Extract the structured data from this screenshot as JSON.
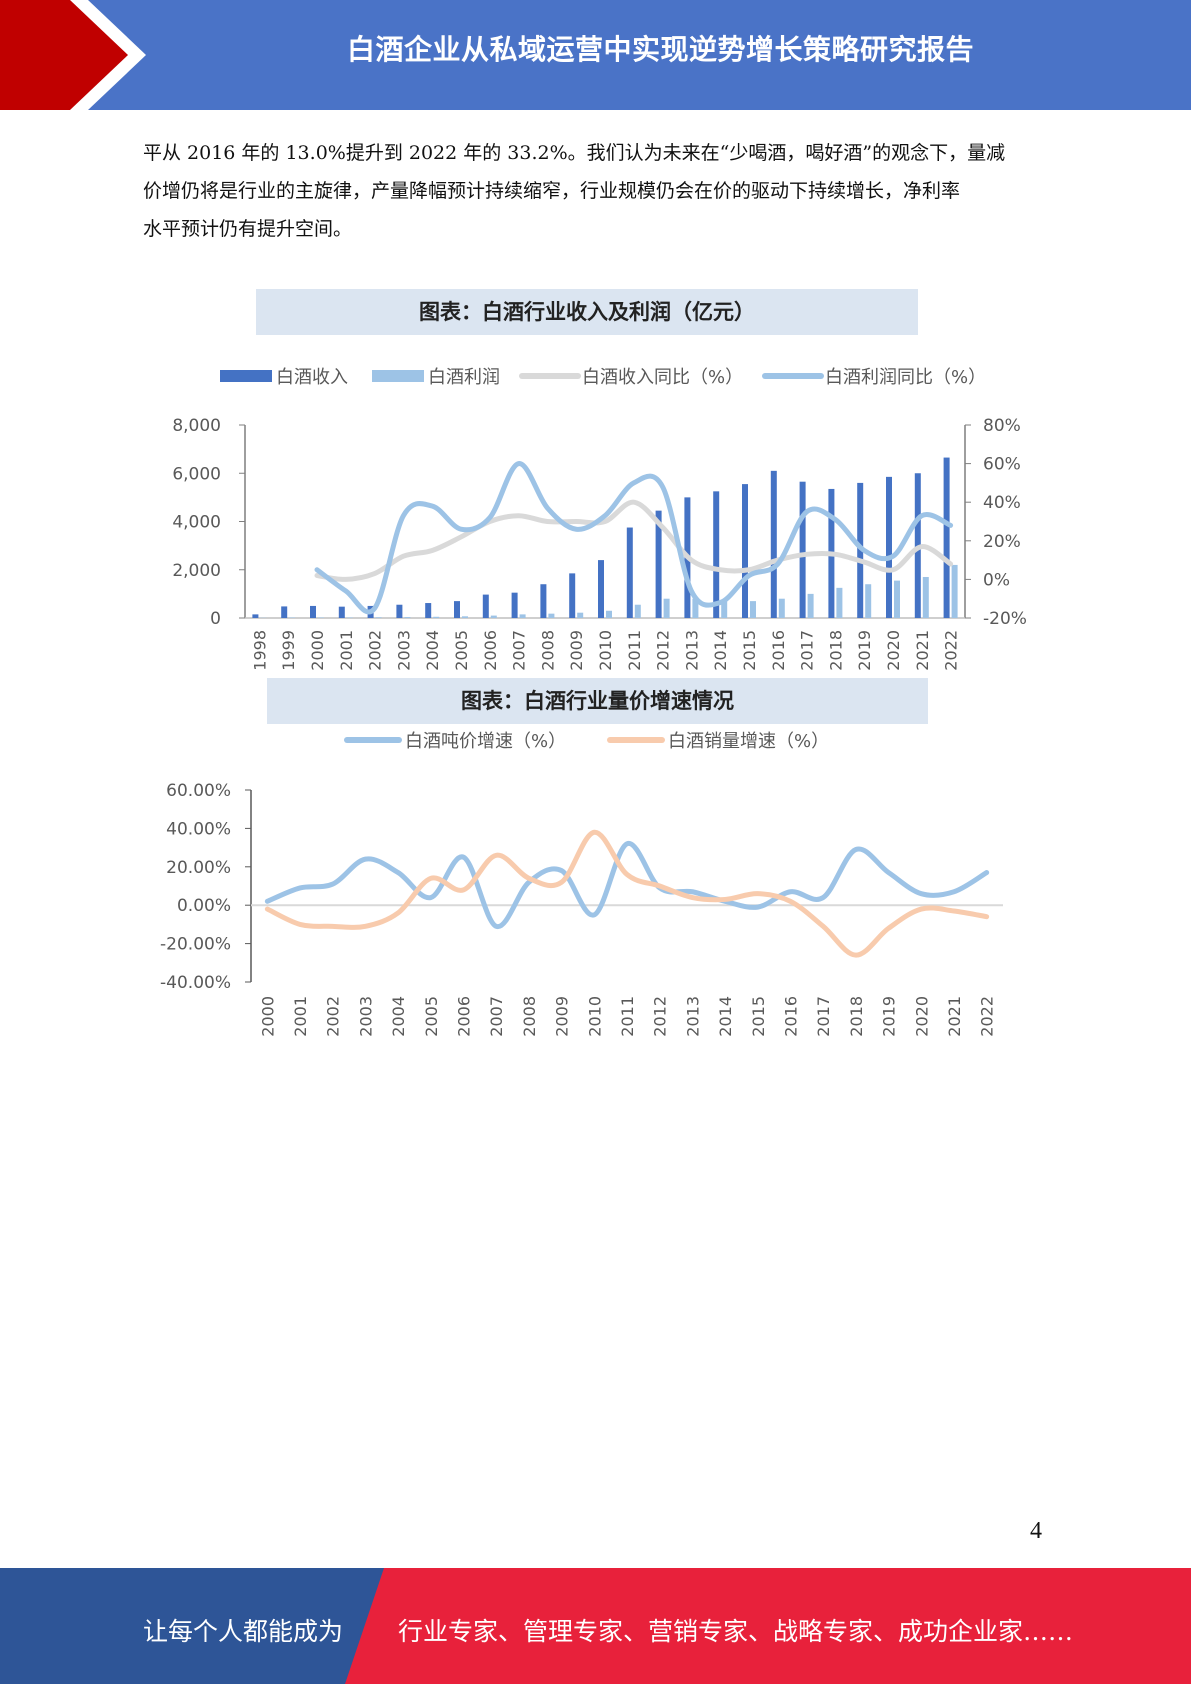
{
  "header": {
    "title": "白酒企业从私域运营中实现逆势增长策略研究报告"
  },
  "paragraph": {
    "lines": [
      "平从 2016 年的 13.0%提升到 2022 年的 33.2%。我们认为未来在“少喝酒，喝好酒”的观念下，量减",
      "价增仍将是行业的主旋律，产量降幅预计持续缩窄，行业规模仍会在价的驱动下持续增长，净利率",
      "水平预计仍有提升空间。"
    ]
  },
  "chart_data": [
    {
      "type": "bar",
      "title": "图表：白酒行业收入及利润（亿元）",
      "categories": [
        "1998",
        "1999",
        "2000",
        "2001",
        "2002",
        "2003",
        "2004",
        "2005",
        "2006",
        "2007",
        "2008",
        "2009",
        "2010",
        "2011",
        "2012",
        "2013",
        "2014",
        "2015",
        "2016",
        "2017",
        "2018",
        "2019",
        "2020",
        "2021",
        "2022"
      ],
      "series": [
        {
          "name": "白酒收入",
          "kind": "bar",
          "axis": "left",
          "color": "#4472c4",
          "values": [
            150,
            480,
            500,
            470,
            500,
            550,
            620,
            700,
            970,
            1050,
            1400,
            1850,
            2400,
            3750,
            4450,
            5000,
            5250,
            5550,
            6100,
            5650,
            5350,
            5600,
            5850,
            6000,
            6650
          ]
        },
        {
          "name": "白酒利润",
          "kind": "bar",
          "axis": "left",
          "color": "#9dc3e6",
          "values": [
            10,
            20,
            20,
            20,
            30,
            40,
            50,
            70,
            100,
            150,
            180,
            220,
            300,
            550,
            800,
            800,
            700,
            700,
            800,
            1000,
            1250,
            1400,
            1550,
            1700,
            2200
          ]
        },
        {
          "name": "白酒收入同比（%）",
          "kind": "line",
          "axis": "right",
          "color": "#d9d9d9",
          "values": [
            null,
            null,
            2,
            0,
            3,
            12,
            15,
            22,
            30,
            33,
            30,
            30,
            30,
            40,
            27,
            10,
            5,
            5,
            10,
            13,
            13,
            9,
            5,
            17,
            8
          ]
        },
        {
          "name": "白酒利润同比（%）",
          "kind": "line",
          "axis": "right",
          "color": "#9dc3e6",
          "values": [
            null,
            null,
            5,
            -6,
            -15,
            33,
            38,
            26,
            32,
            60,
            37,
            26,
            33,
            50,
            48,
            -6,
            -12,
            2,
            8,
            35,
            31,
            15,
            12,
            33,
            28
          ]
        }
      ],
      "ylim_left": [
        0,
        8000
      ],
      "left_ticks": [
        "0",
        "2,000",
        "4,000",
        "6,000",
        "8,000"
      ],
      "ylim_right": [
        -20,
        80
      ],
      "right_ticks": [
        "-20%",
        "0%",
        "20%",
        "40%",
        "60%",
        "80%"
      ],
      "legend": "top"
    },
    {
      "type": "line",
      "title": "图表：白酒行业量价增速情况",
      "categories": [
        "2000",
        "2001",
        "2002",
        "2003",
        "2004",
        "2005",
        "2006",
        "2007",
        "2008",
        "2009",
        "2010",
        "2011",
        "2012",
        "2013",
        "2014",
        "2015",
        "2016",
        "2017",
        "2018",
        "2019",
        "2020",
        "2021",
        "2022"
      ],
      "series": [
        {
          "name": "白酒吨价增速（%）",
          "color": "#9dc3e6",
          "values": [
            2,
            9,
            11,
            24,
            17,
            4,
            25,
            -11,
            12,
            18,
            -5,
            32,
            9,
            7,
            2,
            -1,
            7,
            4,
            29,
            17,
            6,
            7,
            17
          ]
        },
        {
          "name": "白酒销量增速（%）",
          "color": "#f8cbad",
          "values": [
            -2,
            -10,
            -11,
            -11,
            -4,
            14,
            8,
            26,
            14,
            12,
            38,
            16,
            10,
            4,
            3,
            6,
            2,
            -11,
            -26,
            -12,
            -2,
            -3,
            -6
          ]
        }
      ],
      "ylim": [
        -40,
        60
      ],
      "ticks": [
        "-40.00%",
        "-20.00%",
        "0.00%",
        "20.00%",
        "40.00%",
        "60.00%"
      ],
      "legend": "top"
    }
  ],
  "page_number": "4",
  "footer": {
    "left_text": "让每个人都能成为",
    "right_text": "行业专家、管理专家、营销专家、战略专家、成功企业家……",
    "colors": {
      "blue": "#2e5597",
      "red": "#e8213b"
    }
  }
}
